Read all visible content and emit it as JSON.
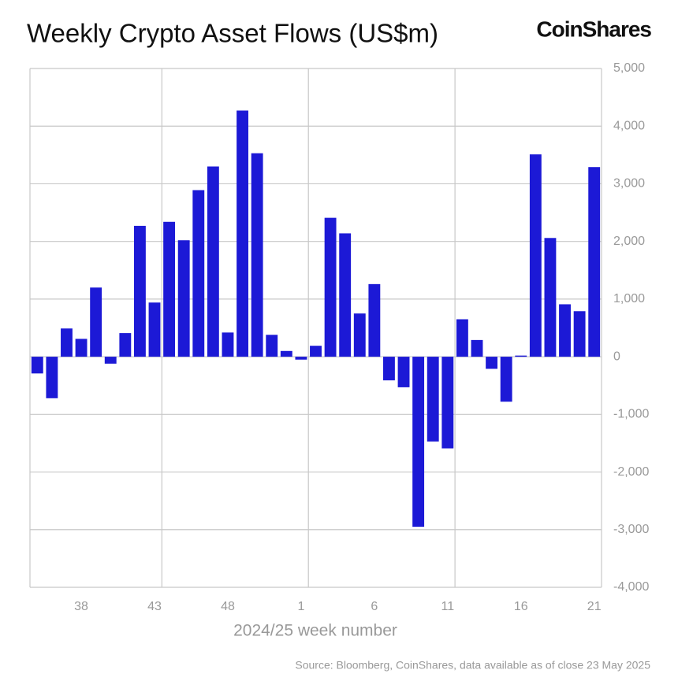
{
  "chart_data": {
    "type": "bar",
    "title": "Weekly Crypto Asset Flows (US$m)",
    "brand": "CoinShares",
    "x_label": "2024/25 week number",
    "source": "Source: Bloomberg, CoinShares, data available as of close 23 May 2025",
    "categories": [
      null,
      null,
      null,
      "38",
      null,
      null,
      null,
      null,
      "43",
      null,
      null,
      null,
      null,
      "48",
      null,
      null,
      null,
      null,
      "1",
      null,
      null,
      null,
      null,
      "6",
      null,
      null,
      null,
      null,
      "11",
      null,
      null,
      null,
      null,
      "16",
      null,
      null,
      null,
      null,
      "21"
    ],
    "values": [
      -290,
      -720,
      490,
      310,
      1200,
      -120,
      410,
      2270,
      940,
      2340,
      2020,
      2890,
      3300,
      420,
      4270,
      3530,
      380,
      100,
      -50,
      190,
      2410,
      2140,
      750,
      1260,
      -410,
      -530,
      -2950,
      -1470,
      -1590,
      650,
      290,
      -210,
      -780,
      20,
      3510,
      2060,
      910,
      790,
      3290
    ],
    "color": "#1c19d6",
    "ylim": [
      -4000,
      5000
    ],
    "yticks": [
      {
        "value": -4000,
        "label": "-4,000"
      },
      {
        "value": -3000,
        "label": "-3,000"
      },
      {
        "value": -2000,
        "label": "-2,000"
      },
      {
        "value": -1000,
        "label": "-1,000"
      },
      0,
      {
        "value": 1000,
        "label": "1,000"
      },
      {
        "value": 2000,
        "label": "2,000"
      },
      {
        "value": 3000,
        "label": "3,000"
      },
      {
        "value": 4000,
        "label": "4,000"
      },
      {
        "value": 5000,
        "label": "5,000"
      }
    ],
    "grid": true
  }
}
